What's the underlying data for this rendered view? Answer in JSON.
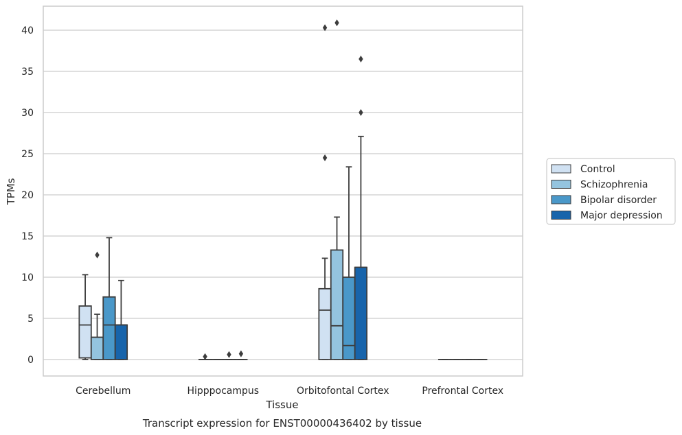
{
  "chart_data": {
    "type": "box",
    "title": "",
    "caption": "Transcript expression for ENST00000436402 by tissue",
    "xlabel": "Tissue",
    "ylabel": "TPMs",
    "ylim": [
      -2,
      43
    ],
    "yticks": [
      0,
      5,
      10,
      15,
      20,
      25,
      30,
      35,
      40
    ],
    "grid": "horizontal",
    "legend_position": "right",
    "categories": [
      "Cerebellum",
      "Hipppocampus",
      "Orbitofontal Cortex",
      "Prefrontal Cortex"
    ],
    "series": [
      {
        "name": "Control",
        "color": "#d0e1f2",
        "boxes": [
          {
            "whislo": 0,
            "q1": 0.2,
            "med": 4.2,
            "q3": 6.5,
            "whishi": 10.3,
            "fliers": []
          },
          {
            "whislo": 0,
            "q1": 0,
            "med": 0,
            "q3": 0,
            "whishi": 0,
            "fliers": [
              0.35
            ]
          },
          {
            "whislo": 0,
            "q1": 0,
            "med": 6.0,
            "q3": 8.6,
            "whishi": 12.3,
            "fliers": [
              24.5,
              40.3
            ]
          },
          {
            "whislo": 0,
            "q1": 0,
            "med": 0,
            "q3": 0,
            "whishi": 0,
            "fliers": []
          }
        ]
      },
      {
        "name": "Schizophrenia",
        "color": "#94c4df",
        "boxes": [
          {
            "whislo": 0,
            "q1": 0,
            "med": 2.7,
            "q3": 2.7,
            "whishi": 5.5,
            "fliers": [
              12.7
            ]
          },
          {
            "whislo": 0,
            "q1": 0,
            "med": 0,
            "q3": 0,
            "whishi": 0,
            "fliers": []
          },
          {
            "whislo": 0,
            "q1": 0,
            "med": 4.1,
            "q3": 13.3,
            "whishi": 17.3,
            "fliers": [
              40.9
            ]
          },
          {
            "whislo": 0,
            "q1": 0,
            "med": 0,
            "q3": 0,
            "whishi": 0,
            "fliers": []
          }
        ]
      },
      {
        "name": "Bipolar disorder",
        "color": "#4a98c9",
        "boxes": [
          {
            "whislo": 0,
            "q1": 0,
            "med": 4.2,
            "q3": 7.6,
            "whishi": 14.8,
            "fliers": []
          },
          {
            "whislo": 0,
            "q1": 0,
            "med": 0,
            "q3": 0,
            "whishi": 0,
            "fliers": [
              0.6
            ]
          },
          {
            "whislo": 0,
            "q1": 0,
            "med": 1.7,
            "q3": 10.0,
            "whishi": 23.4,
            "fliers": []
          },
          {
            "whislo": 0,
            "q1": 0,
            "med": 0,
            "q3": 0,
            "whishi": 0,
            "fliers": []
          }
        ]
      },
      {
        "name": "Major depression",
        "color": "#1764ab",
        "boxes": [
          {
            "whislo": 0,
            "q1": 0,
            "med": 4.2,
            "q3": 4.2,
            "whishi": 9.6,
            "fliers": []
          },
          {
            "whislo": 0,
            "q1": 0,
            "med": 0,
            "q3": 0,
            "whishi": 0,
            "fliers": [
              0.7
            ]
          },
          {
            "whislo": 0,
            "q1": 0,
            "med": 11.2,
            "q3": 11.2,
            "whishi": 27.1,
            "fliers": [
              30.0,
              36.5
            ]
          },
          {
            "whislo": 0,
            "q1": 0,
            "med": 0,
            "q3": 0,
            "whishi": 0,
            "fliers": []
          }
        ]
      }
    ]
  }
}
